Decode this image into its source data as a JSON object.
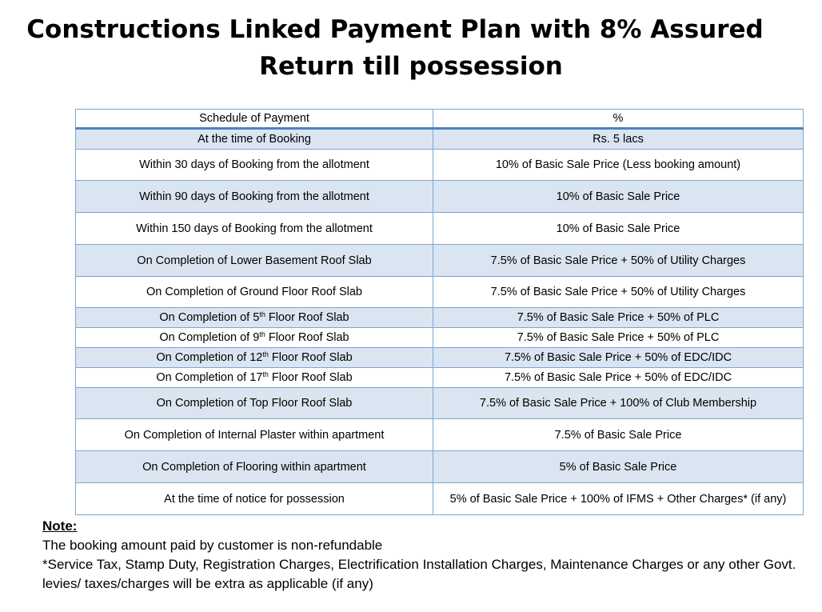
{
  "title": {
    "line1": "Constructions Linked Payment Plan with 8% Assured",
    "line2": "Return till possession"
  },
  "table": {
    "headers": [
      "Schedule of Payment",
      "%"
    ],
    "rows": [
      {
        "stage": "At the time of Booking",
        "payment": "Rs. 5 lacs"
      },
      {
        "stage": "Within 30 days of Booking from the allotment",
        "payment": "10% of Basic Sale Price (Less booking amount)"
      },
      {
        "stage": "Within 90 days of Booking from the allotment",
        "payment": "10% of Basic Sale Price"
      },
      {
        "stage": "Within 150 days of Booking from the allotment",
        "payment": "10% of Basic Sale Price"
      },
      {
        "stage": "On Completion of Lower Basement Roof Slab",
        "payment": "7.5% of Basic Sale Price + 50% of Utility Charges"
      },
      {
        "stage": "On Completion of Ground Floor Roof Slab",
        "payment": "7.5% of Basic Sale Price + 50% of Utility Charges"
      },
      {
        "stage_prefix": "On Completion of 5",
        "stage_sup": "th",
        "stage_suffix": " Floor Roof Slab",
        "payment": "7.5% of Basic Sale Price + 50% of PLC"
      },
      {
        "stage_prefix": "On Completion of 9",
        "stage_sup": "th",
        "stage_suffix": " Floor Roof Slab",
        "payment": "7.5% of Basic Sale Price + 50% of PLC"
      },
      {
        "stage_prefix": "On Completion of 12",
        "stage_sup": "th",
        "stage_suffix": " Floor Roof Slab",
        "payment": "7.5% of Basic Sale Price + 50% of EDC/IDC"
      },
      {
        "stage_prefix": "On Completion of 17",
        "stage_sup": "th",
        "stage_suffix": " Floor Roof Slab",
        "payment": "7.5% of Basic Sale Price + 50% of EDC/IDC"
      },
      {
        "stage": "On Completion of Top Floor Roof Slab",
        "payment": "7.5% of Basic Sale Price + 100% of Club Membership"
      },
      {
        "stage": "On Completion of Internal Plaster within apartment",
        "payment": "7.5% of Basic Sale Price"
      },
      {
        "stage": "On Completion of Flooring within apartment",
        "payment": "5% of Basic Sale Price"
      },
      {
        "stage": "At the time of notice for possession",
        "payment": "5% of Basic Sale Price + 100% of IFMS + Other Charges* (if any)"
      }
    ]
  },
  "note": {
    "heading": "Note:",
    "line1": "The booking amount paid by customer is non-refundable",
    "line2": "*Service Tax, Stamp Duty, Registration Charges, Electrification Installation Charges, Maintenance Charges or any other Govt. levies/ taxes/charges will be extra as applicable (if any)"
  },
  "colors": {
    "row_shade": "#dbe5f1",
    "border": "#7ea6d0",
    "header_rule": "#4f81bd"
  }
}
